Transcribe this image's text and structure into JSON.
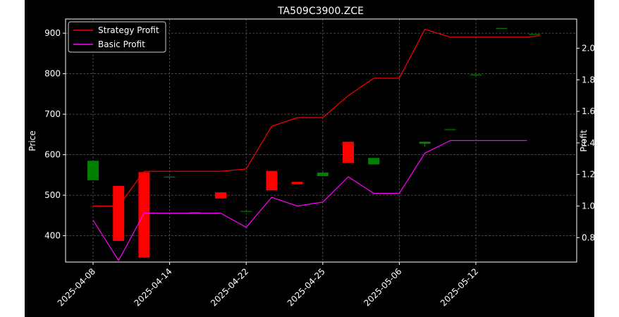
{
  "chart_data": {
    "type": "candlestick",
    "title": "TA509C3900.ZCE",
    "ylabel": "Price",
    "y2label": "Profit",
    "ylim": [
      335,
      935
    ],
    "y2lim": [
      0.645,
      2.185
    ],
    "yticks": [
      400,
      500,
      600,
      700,
      800,
      900
    ],
    "y2ticks": [
      0.8,
      1.0,
      1.2,
      1.4,
      1.6,
      1.8,
      2.0
    ],
    "grid": true,
    "legend_position": "top-left",
    "colors": {
      "up": "#008000",
      "down": "#ff0000",
      "strategy": "#ff0000",
      "basic": "#ff00ff",
      "background": "#000000",
      "text": "#ffffff"
    },
    "x_tick_labels": [
      {
        "index": 0,
        "label": "2025-04-08"
      },
      {
        "index": 3,
        "label": "2025-04-14"
      },
      {
        "index": 6,
        "label": "2025-04-22"
      },
      {
        "index": 9,
        "label": "2025-04-25"
      },
      {
        "index": 12,
        "label": "2025-05-06"
      },
      {
        "index": 15,
        "label": "2025-05-12"
      }
    ],
    "candles": [
      {
        "index": 0,
        "open": 537,
        "close": 585,
        "high": 587,
        "low": 537
      },
      {
        "index": 1,
        "open": 523,
        "close": 387,
        "high": 523,
        "low": 387
      },
      {
        "index": 2,
        "open": 557,
        "close": 346,
        "high": 557,
        "low": 346
      },
      {
        "index": 3,
        "open": 546,
        "close": 546,
        "high": 546,
        "low": 546
      },
      {
        "index": 4,
        "open": 458,
        "close": 458,
        "high": 458,
        "low": 458
      },
      {
        "index": 5,
        "open": 507,
        "close": 492,
        "high": 507,
        "low": 492
      },
      {
        "index": 6,
        "open": 461,
        "close": 461,
        "high": 461,
        "low": 461
      },
      {
        "index": 7,
        "open": 560,
        "close": 512,
        "high": 560,
        "low": 512
      },
      {
        "index": 8,
        "open": 533,
        "close": 527,
        "high": 533,
        "low": 527
      },
      {
        "index": 9,
        "open": 547,
        "close": 556,
        "high": 556,
        "low": 547
      },
      {
        "index": 10,
        "open": 632,
        "close": 580,
        "high": 632,
        "low": 580
      },
      {
        "index": 11,
        "open": 576,
        "close": 592,
        "high": 592,
        "low": 576
      },
      {
        "index": 13,
        "open": 627,
        "close": 632,
        "high": 632,
        "low": 620
      },
      {
        "index": 14,
        "open": 663,
        "close": 663,
        "high": 663,
        "low": 663
      },
      {
        "index": 15,
        "open": 798,
        "close": 798,
        "high": 798,
        "low": 798
      },
      {
        "index": 16,
        "open": 913,
        "close": 913,
        "high": 913,
        "low": 913
      },
      {
        "index": 17.3,
        "open": 898,
        "close": 898,
        "high": 898,
        "low": 898
      }
    ],
    "series": [
      {
        "name": "Strategy Profit",
        "axis": "right",
        "x": [
          0,
          1,
          2,
          3,
          4,
          5,
          6,
          7,
          8,
          9,
          10,
          11,
          12,
          13,
          14,
          15,
          16,
          17,
          17.5
        ],
        "values": [
          1.0,
          1.0,
          1.22,
          1.22,
          1.22,
          1.22,
          1.235,
          1.505,
          1.56,
          1.56,
          1.7,
          1.81,
          1.81,
          2.12,
          2.07,
          2.07,
          2.07,
          2.07,
          2.08
        ]
      },
      {
        "name": "Basic Profit",
        "axis": "right",
        "x": [
          0,
          1,
          2,
          3,
          4,
          5,
          6,
          7,
          8,
          9,
          10,
          11,
          12,
          13,
          14,
          15,
          16,
          17
        ],
        "values": [
          0.91,
          0.655,
          0.955,
          0.955,
          0.955,
          0.955,
          0.865,
          1.055,
          1.0,
          1.025,
          1.185,
          1.08,
          1.08,
          1.335,
          1.415,
          1.415,
          1.415,
          1.415
        ]
      }
    ]
  }
}
